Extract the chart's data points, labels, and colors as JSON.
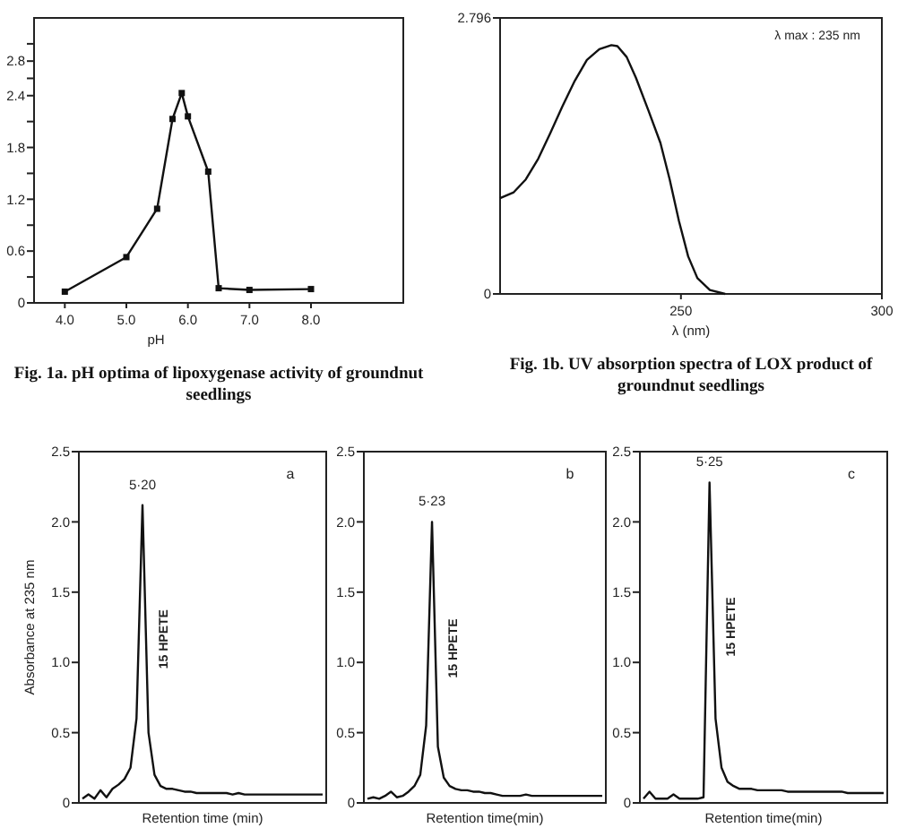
{
  "chart_data": [
    {
      "type": "line",
      "title": "Fig. 1a. pH optima of lipoxygenase activity of groundnut seedlings",
      "xlabel": "pH",
      "marker": "square",
      "color": "#111111",
      "x": [
        4.0,
        5.0,
        5.5,
        5.75,
        5.9,
        6.0,
        6.33,
        6.5,
        7.0,
        8.0
      ],
      "values": [
        0.13,
        0.53,
        1.09,
        2.13,
        2.43,
        2.16,
        1.52,
        0.17,
        0.15,
        0.16
      ],
      "xlim": [
        3.5,
        9.5
      ],
      "xticks": [
        {
          "value": 4,
          "label": "4.0"
        },
        {
          "value": 5,
          "label": "5.0"
        },
        {
          "value": 6,
          "label": "6.0"
        },
        {
          "value": 7,
          "label": "7.0"
        },
        {
          "value": 8,
          "label": "8.0"
        }
      ],
      "ylim": [
        0,
        3.3
      ],
      "yticks": [
        0,
        {
          "value": 0.3,
          "label": null
        },
        0.6,
        {
          "value": 0.9,
          "label": null
        },
        1.2,
        {
          "value": 1.5,
          "label": null
        },
        1.8,
        {
          "value": 2.1,
          "label": null
        },
        2.4,
        {
          "value": 2.6,
          "label": null
        },
        2.8,
        {
          "value": 3.0,
          "label": null
        }
      ]
    },
    {
      "type": "line",
      "title": "Fig. 1b. UV absorption spectra of LOX product of groundnut seedlings",
      "xlabel": "λ (nm)",
      "color": "#111111",
      "annotations": [
        "λ max : 235 nm"
      ],
      "x": [
        205,
        208.4,
        211.4,
        214.5,
        217.5,
        220.5,
        223.6,
        226.6,
        229.7,
        232.7,
        234.2,
        236.5,
        238.8,
        241.9,
        244.9,
        247.2,
        249.5,
        251.8,
        254.1,
        257.2,
        261
      ],
      "values": [
        0.97,
        1.03,
        1.16,
        1.37,
        1.63,
        1.9,
        2.16,
        2.37,
        2.48,
        2.52,
        2.51,
        2.4,
        2.19,
        1.86,
        1.53,
        1.16,
        0.74,
        0.38,
        0.16,
        0.04,
        0
      ],
      "xlim": [
        205,
        300
      ],
      "xticks": [
        250,
        300
      ],
      "ylim": [
        0,
        2.796
      ],
      "yticks": [
        0,
        2.796
      ]
    },
    {
      "type": "line",
      "xlabel": "Retention time (min)",
      "ylabel": "Absorbance at 235 nm",
      "color": "#111111",
      "tick_labels": "y",
      "annotations": [
        "a",
        "5·20",
        "15 HPETE"
      ],
      "categories": [
        null,
        null,
        null,
        null,
        null,
        null,
        null,
        null,
        null,
        null,
        null,
        null,
        null,
        null,
        null,
        null,
        null,
        null,
        null,
        null,
        null,
        null,
        null,
        null,
        null,
        null,
        null,
        null,
        null,
        null,
        null,
        null,
        null,
        null,
        null,
        null,
        null,
        null,
        null,
        null,
        null
      ],
      "values": [
        0.03,
        0.06,
        0.03,
        0.09,
        0.04,
        0.1,
        0.13,
        0.17,
        0.25,
        0.6,
        2.12,
        0.5,
        0.2,
        0.12,
        0.1,
        0.1,
        0.09,
        0.08,
        0.08,
        0.07,
        0.07,
        0.07,
        0.07,
        0.07,
        0.07,
        0.06,
        0.07,
        0.06,
        0.06,
        0.06,
        0.06,
        0.06,
        0.06,
        0.06,
        0.06,
        0.06,
        0.06,
        0.06,
        0.06,
        0.06,
        0.06
      ],
      "ylim": [
        0,
        2.5
      ],
      "yticks": [
        0,
        0.5,
        {
          "value": 1,
          "label": "1.0"
        },
        1.5,
        {
          "value": 2,
          "label": "2.0"
        },
        2.5
      ]
    },
    {
      "type": "line",
      "xlabel": "Retention time(min)",
      "color": "#111111",
      "tick_labels": "y",
      "annotations": [
        "b",
        "5·23",
        "15 HPETE"
      ],
      "categories": [
        null,
        null,
        null,
        null,
        null,
        null,
        null,
        null,
        null,
        null,
        null,
        null,
        null,
        null,
        null,
        null,
        null,
        null,
        null,
        null,
        null,
        null,
        null,
        null,
        null,
        null,
        null,
        null,
        null,
        null,
        null,
        null,
        null,
        null,
        null,
        null,
        null,
        null,
        null,
        null,
        null
      ],
      "values": [
        0.03,
        0.04,
        0.03,
        0.05,
        0.08,
        0.04,
        0.05,
        0.08,
        0.12,
        0.2,
        0.55,
        2.0,
        0.4,
        0.18,
        0.12,
        0.1,
        0.09,
        0.09,
        0.08,
        0.08,
        0.07,
        0.07,
        0.06,
        0.05,
        0.05,
        0.05,
        0.05,
        0.06,
        0.05,
        0.05,
        0.05,
        0.05,
        0.05,
        0.05,
        0.05,
        0.05,
        0.05,
        0.05,
        0.05,
        0.05,
        0.05
      ],
      "ylim": [
        0,
        2.5
      ],
      "yticks": [
        0,
        0.5,
        {
          "value": 1,
          "label": "1.0"
        },
        1.5,
        {
          "value": 2,
          "label": "2.0"
        },
        2.5
      ]
    },
    {
      "type": "line",
      "xlabel": "Retention time(min)",
      "color": "#111111",
      "tick_labels": "y",
      "annotations": [
        "c",
        "5·25",
        "15 HPETE"
      ],
      "categories": [
        null,
        null,
        null,
        null,
        null,
        null,
        null,
        null,
        null,
        null,
        null,
        null,
        null,
        null,
        null,
        null,
        null,
        null,
        null,
        null,
        null,
        null,
        null,
        null,
        null,
        null,
        null,
        null,
        null,
        null,
        null,
        null,
        null,
        null,
        null,
        null,
        null,
        null,
        null,
        null,
        null
      ],
      "values": [
        0.03,
        0.08,
        0.03,
        0.03,
        0.03,
        0.06,
        0.03,
        0.03,
        0.03,
        0.03,
        0.04,
        2.28,
        0.6,
        0.25,
        0.15,
        0.12,
        0.1,
        0.1,
        0.1,
        0.09,
        0.09,
        0.09,
        0.09,
        0.09,
        0.08,
        0.08,
        0.08,
        0.08,
        0.08,
        0.08,
        0.08,
        0.08,
        0.08,
        0.08,
        0.07,
        0.07,
        0.07,
        0.07,
        0.07,
        0.07,
        0.07
      ],
      "ylim": [
        0,
        2.5
      ],
      "yticks": [
        0,
        0.5,
        {
          "value": 1,
          "label": "1.0"
        },
        1.5,
        {
          "value": 2,
          "label": "2.0"
        },
        2.5
      ]
    }
  ]
}
